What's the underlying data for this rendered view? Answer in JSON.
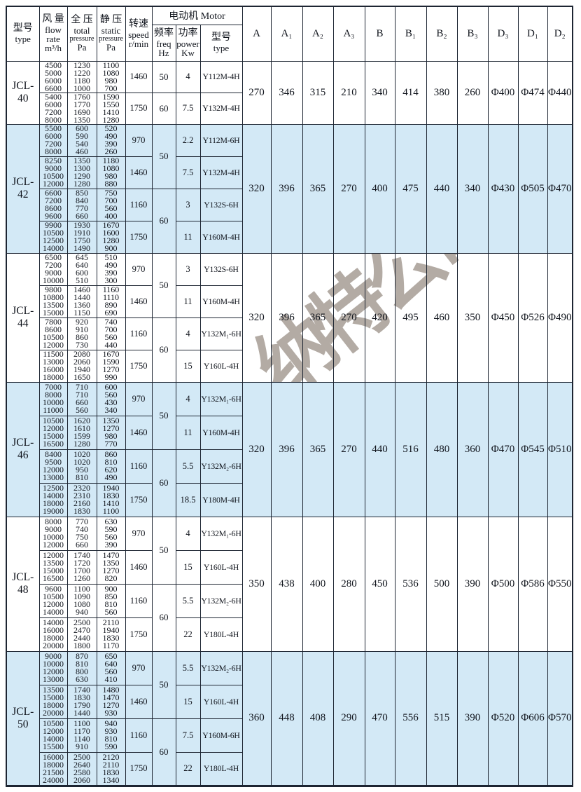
{
  "watermark": "纳特公司",
  "colors": {
    "shade": "#d3e9f6",
    "border": "#1d2532",
    "watermark": "#a69d95"
  },
  "header": {
    "type_zh": "型号",
    "type_en": "type",
    "flow_zh": "风 量",
    "flow_l1": "flow",
    "flow_l2": "rate",
    "flow_unit": "m³/h",
    "total_zh": "全 压",
    "total_l1": "total",
    "total_l2": "pressure",
    "total_unit": "Pa",
    "static_zh": "静 压",
    "static_l1": "static",
    "static_l2": "pressure",
    "static_unit": "Pa",
    "speed_zh": "转速",
    "speed_l1": "speed",
    "speed_unit": "r/min",
    "motor_group": "电动机 Motor",
    "freq_zh": "频率",
    "freq_l1": "freq",
    "freq_unit": "Hz",
    "power_zh": "功率",
    "power_l1": "power",
    "power_unit": "Kw",
    "mtype_zh": "型号",
    "mtype_en": "type",
    "dims": [
      "A",
      "A₁",
      "A₂",
      "A₃",
      "B",
      "B₁",
      "B₂",
      "B₃",
      "D₃",
      "D₁",
      "D₂"
    ]
  },
  "sections": [
    {
      "model": "JCL-40",
      "shaded": false,
      "rows": [
        {
          "flow": "4500\n5000\n6000\n6600",
          "total": "1230\n1220\n1180\n1000",
          "static": "1100\n1080\n980\n700",
          "speed": "1460",
          "power": "4",
          "motor": "Y112M-4H"
        },
        {
          "flow": "5400\n6000\n7200\n8000",
          "total": "1760\n1770\n1690\n1350",
          "static": "1590\n1550\n1410\n1280",
          "speed": "1750",
          "power": "7.5",
          "motor": "Y132M-4H"
        }
      ],
      "freqs": [
        {
          "value": "50",
          "span": 1
        },
        {
          "value": "60",
          "span": 1
        }
      ],
      "dims": [
        "270",
        "346",
        "315",
        "210",
        "340",
        "414",
        "380",
        "260",
        "Φ400",
        "Φ474",
        "Φ440"
      ]
    },
    {
      "model": "JCL-42",
      "shaded": true,
      "rows": [
        {
          "flow": "5500\n6000\n7200\n8000",
          "total": "600\n590\n540\n460",
          "static": "520\n490\n390\n260",
          "speed": "970",
          "power": "2.2",
          "motor": "Y112M-6H"
        },
        {
          "flow": "8250\n9000\n10500\n12000",
          "total": "1350\n1300\n1290\n1280",
          "static": "1180\n1080\n980\n880",
          "speed": "1460",
          "power": "7.5",
          "motor": "Y132M-4H"
        },
        {
          "flow": "6600\n7200\n8600\n9600",
          "total": "850\n840\n770\n660",
          "static": "750\n700\n560\n400",
          "speed": "1160",
          "power": "3",
          "motor": "Y132S-6H"
        },
        {
          "flow": "9900\n10500\n12500\n14000",
          "total": "1930\n1910\n1750\n1490",
          "static": "1670\n1600\n1280\n900",
          "speed": "1750",
          "power": "11",
          "motor": "Y160M-4H"
        }
      ],
      "freqs": [
        {
          "value": "50",
          "span": 2
        },
        {
          "value": "60",
          "span": 2
        }
      ],
      "dims": [
        "320",
        "396",
        "365",
        "270",
        "400",
        "475",
        "440",
        "340",
        "Φ430",
        "Φ505",
        "Φ470"
      ]
    },
    {
      "model": "JCL-44",
      "shaded": false,
      "rows": [
        {
          "flow": "6500\n7200\n9000\n10000",
          "total": "645\n640\n600\n510",
          "static": "510\n490\n390\n300",
          "speed": "970",
          "power": "3",
          "motor": "Y132S-6H"
        },
        {
          "flow": "9800\n10800\n13500\n15000",
          "total": "1460\n1440\n1360\n1150",
          "static": "1160\n1110\n890\n690",
          "speed": "1460",
          "power": "11",
          "motor": "Y160M-4H"
        },
        {
          "flow": "7800\n8600\n10500\n12000",
          "total": "920\n910\n860\n730",
          "static": "740\n700\n560\n440",
          "speed": "1160",
          "power": "4",
          "motor": "Y132M₁-6H"
        },
        {
          "flow": "11500\n13000\n16000\n18000",
          "total": "2080\n2060\n1940\n1650",
          "static": "1670\n1590\n1270\n990",
          "speed": "1750",
          "power": "15",
          "motor": "Y160L-4H"
        }
      ],
      "freqs": [
        {
          "value": "50",
          "span": 2
        },
        {
          "value": "60",
          "span": 2
        }
      ],
      "dims": [
        "320",
        "396",
        "365",
        "270",
        "420",
        "495",
        "460",
        "350",
        "Φ450",
        "Φ526",
        "Φ490"
      ]
    },
    {
      "model": "JCL-46",
      "shaded": true,
      "rows": [
        {
          "flow": "7000\n8000\n10000\n11000",
          "total": "710\n710\n660\n560",
          "static": "600\n560\n430\n340",
          "speed": "970",
          "power": "4",
          "motor": "Y132M₁-6H"
        },
        {
          "flow": "10500\n12000\n15000\n16500",
          "total": "1620\n1610\n1599\n1280",
          "static": "1350\n1270\n980\n770",
          "speed": "1460",
          "power": "11",
          "motor": "Y160M-4H"
        },
        {
          "flow": "8400\n9500\n12000\n13000",
          "total": "1020\n1020\n950\n810",
          "static": "860\n810\n620\n490",
          "speed": "1160",
          "power": "5.5",
          "motor": "Y132M₂-6H"
        },
        {
          "flow": "12500\n14000\n18000\n19000",
          "total": "2320\n2310\n2160\n1830",
          "static": "1940\n1830\n1410\n1100",
          "speed": "1750",
          "power": "18.5",
          "motor": "Y180M-4H"
        }
      ],
      "freqs": [
        {
          "value": "50",
          "span": 2
        },
        {
          "value": "60",
          "span": 2
        }
      ],
      "dims": [
        "320",
        "396",
        "365",
        "270",
        "440",
        "516",
        "480",
        "360",
        "Φ470",
        "Φ545",
        "Φ510"
      ]
    },
    {
      "model": "JCL-48",
      "shaded": false,
      "rows": [
        {
          "flow": "8000\n9000\n10000\n12000",
          "total": "770\n740\n750\n660",
          "static": "630\n590\n560\n390",
          "speed": "970",
          "power": "4",
          "motor": "Y132M₁-6H"
        },
        {
          "flow": "12000\n13500\n15000\n16500",
          "total": "1740\n1720\n1700\n1260",
          "static": "1470\n1350\n1270\n820",
          "speed": "1460",
          "power": "15",
          "motor": "Y160L-4H"
        },
        {
          "flow": "9600\n10500\n12000\n14000",
          "total": "1100\n1090\n1080\n940",
          "static": "900\n850\n810\n560",
          "speed": "1160",
          "power": "5.5",
          "motor": "Y132M₂-6H"
        },
        {
          "flow": "14000\n16000\n18000\n20000",
          "total": "2500\n2470\n2440\n1800",
          "static": "2110\n1940\n1830\n1170",
          "speed": "1750",
          "power": "22",
          "motor": "Y180L-4H"
        }
      ],
      "freqs": [
        {
          "value": "50",
          "span": 2
        },
        {
          "value": "60",
          "span": 2
        }
      ],
      "dims": [
        "350",
        "438",
        "400",
        "280",
        "450",
        "536",
        "500",
        "390",
        "Φ500",
        "Φ586",
        "Φ550"
      ]
    },
    {
      "model": "JCL-50",
      "shaded": true,
      "rows": [
        {
          "flow": "9000\n10000\n12000\n13000",
          "total": "870\n810\n800\n630",
          "static": "650\n640\n560\n410",
          "speed": "970",
          "power": "5.5",
          "motor": "Y132M₂-6H"
        },
        {
          "flow": "13500\n15000\n18000\n20000",
          "total": "1740\n1830\n1790\n1440",
          "static": "1480\n1470\n1270\n930",
          "speed": "1460",
          "power": "15",
          "motor": "Y160L-4H"
        },
        {
          "flow": "10500\n12000\n14000\n15500",
          "total": "1100\n1170\n1140\n910",
          "static": "940\n930\n810\n590",
          "speed": "1160",
          "power": "7.5",
          "motor": "Y160M-6H"
        },
        {
          "flow": "16000\n18000\n21500\n24000",
          "total": "2500\n2640\n2580\n2060",
          "static": "2120\n2110\n1830\n1340",
          "speed": "1750",
          "power": "22",
          "motor": "Y180L-4H"
        }
      ],
      "freqs": [
        {
          "value": "50",
          "span": 2
        },
        {
          "value": "60",
          "span": 2
        }
      ],
      "dims": [
        "360",
        "448",
        "408",
        "290",
        "470",
        "556",
        "515",
        "390",
        "Φ520",
        "Φ606",
        "Φ570"
      ]
    }
  ]
}
